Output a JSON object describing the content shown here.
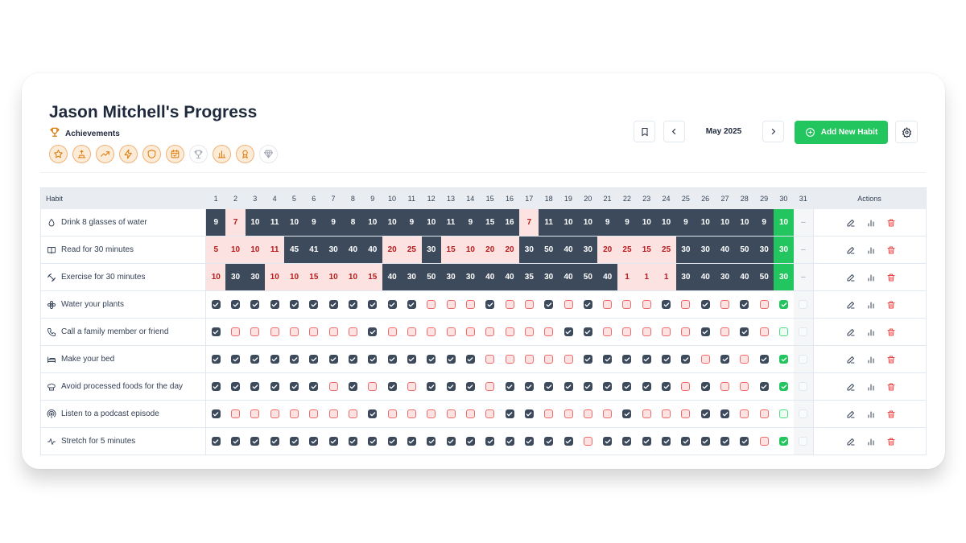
{
  "page": {
    "title": "Jason Mitchell's Progress",
    "achievements_label": "Achievements",
    "badges": [
      {
        "icon": "star-icon",
        "earned": true
      },
      {
        "icon": "podium-icon",
        "earned": true
      },
      {
        "icon": "trending-up-icon",
        "earned": true
      },
      {
        "icon": "lightning-icon",
        "earned": true
      },
      {
        "icon": "shield-icon",
        "earned": true
      },
      {
        "icon": "calendar-check-icon",
        "earned": true
      },
      {
        "icon": "trophy-icon",
        "earned": false
      },
      {
        "icon": "bar-chart-icon",
        "earned": true
      },
      {
        "icon": "medal-icon",
        "earned": true
      },
      {
        "icon": "diamond-icon",
        "earned": false
      }
    ]
  },
  "toolbar": {
    "month": "May 2025",
    "add_label": "Add New Habit",
    "icons": [
      "bookmark-icon",
      "chevron-left-icon",
      "chevron-right-icon",
      "plus-circle-icon",
      "settings-icon"
    ]
  },
  "table": {
    "habit_header": "Habit",
    "actions_header": "Actions",
    "days": [
      "1",
      "2",
      "3",
      "4",
      "5",
      "6",
      "7",
      "8",
      "9",
      "10",
      "11",
      "12",
      "13",
      "14",
      "15",
      "16",
      "17",
      "18",
      "19",
      "20",
      "21",
      "22",
      "23",
      "24",
      "25",
      "26",
      "27",
      "28",
      "29",
      "30",
      "31"
    ],
    "action_icons": [
      "edit-icon",
      "stats-icon",
      "delete-icon"
    ],
    "rows": [
      {
        "name": "Drink 8 glasses of water",
        "icon": "droplet-icon",
        "type": "num",
        "values": [
          "9",
          "7",
          "10",
          "11",
          "10",
          "9",
          "9",
          "8",
          "10",
          "10",
          "9",
          "10",
          "11",
          "9",
          "15",
          "16",
          "7",
          "11",
          "10",
          "10",
          "9",
          "9",
          "10",
          "10",
          "9",
          "10",
          "10",
          "10",
          "9",
          "10",
          "–"
        ],
        "status": [
          "d",
          "m",
          "d",
          "d",
          "d",
          "d",
          "d",
          "d",
          "d",
          "d",
          "d",
          "d",
          "d",
          "d",
          "d",
          "d",
          "m",
          "d",
          "d",
          "d",
          "d",
          "d",
          "d",
          "d",
          "d",
          "d",
          "d",
          "d",
          "d",
          "g",
          "-"
        ]
      },
      {
        "name": "Read for 30 minutes",
        "icon": "book-icon",
        "type": "num",
        "values": [
          "5",
          "10",
          "10",
          "11",
          "45",
          "41",
          "30",
          "40",
          "40",
          "20",
          "25",
          "30",
          "15",
          "10",
          "20",
          "20",
          "30",
          "50",
          "40",
          "30",
          "20",
          "25",
          "15",
          "25",
          "30",
          "30",
          "40",
          "50",
          "30",
          "30",
          "–"
        ],
        "status": [
          "m",
          "m",
          "m",
          "m",
          "d",
          "d",
          "d",
          "d",
          "d",
          "m",
          "m",
          "d",
          "m",
          "m",
          "m",
          "m",
          "d",
          "d",
          "d",
          "d",
          "m",
          "m",
          "m",
          "m",
          "d",
          "d",
          "d",
          "d",
          "d",
          "g",
          "-"
        ]
      },
      {
        "name": "Exercise for 30 minutes",
        "icon": "dumbbell-icon",
        "type": "num",
        "values": [
          "10",
          "30",
          "30",
          "10",
          "10",
          "15",
          "10",
          "10",
          "15",
          "40",
          "30",
          "50",
          "30",
          "30",
          "40",
          "40",
          "35",
          "30",
          "40",
          "50",
          "40",
          "1",
          "1",
          "1",
          "30",
          "40",
          "30",
          "40",
          "50",
          "30",
          "–"
        ],
        "status": [
          "m",
          "d",
          "d",
          "m",
          "m",
          "m",
          "m",
          "m",
          "m",
          "d",
          "d",
          "d",
          "d",
          "d",
          "d",
          "d",
          "d",
          "d",
          "d",
          "d",
          "d",
          "m",
          "m",
          "m",
          "d",
          "d",
          "d",
          "d",
          "d",
          "g",
          "-"
        ]
      },
      {
        "name": "Water your plants",
        "icon": "flower-icon",
        "type": "check",
        "status": [
          "x",
          "x",
          "x",
          "x",
          "x",
          "x",
          "x",
          "x",
          "x",
          "x",
          "x",
          "m",
          "m",
          "m",
          "x",
          "m",
          "m",
          "x",
          "m",
          "x",
          "m",
          "m",
          "m",
          "x",
          "m",
          "x",
          "m",
          "x",
          "m",
          "g",
          "e"
        ]
      },
      {
        "name": "Call a family member or friend",
        "icon": "phone-icon",
        "type": "check",
        "status": [
          "x",
          "m",
          "m",
          "m",
          "m",
          "m",
          "m",
          "m",
          "x",
          "m",
          "m",
          "m",
          "m",
          "m",
          "m",
          "m",
          "m",
          "m",
          "x",
          "x",
          "m",
          "m",
          "m",
          "m",
          "m",
          "x",
          "m",
          "x",
          "m",
          "gl",
          "e"
        ]
      },
      {
        "name": "Make your bed",
        "icon": "bed-icon",
        "type": "check",
        "status": [
          "x",
          "x",
          "x",
          "x",
          "x",
          "x",
          "x",
          "x",
          "x",
          "x",
          "x",
          "x",
          "x",
          "x",
          "m",
          "m",
          "m",
          "m",
          "m",
          "x",
          "x",
          "x",
          "x",
          "x",
          "x",
          "m",
          "x",
          "m",
          "x",
          "g",
          "e"
        ]
      },
      {
        "name": "Avoid processed foods for the day",
        "icon": "chef-hat-icon",
        "type": "check",
        "status": [
          "x",
          "x",
          "x",
          "x",
          "x",
          "x",
          "m",
          "x",
          "m",
          "x",
          "m",
          "x",
          "x",
          "x",
          "m",
          "x",
          "x",
          "x",
          "x",
          "x",
          "x",
          "x",
          "x",
          "x",
          "m",
          "x",
          "m",
          "m",
          "x",
          "g",
          "e"
        ]
      },
      {
        "name": "Listen to a podcast episode",
        "icon": "podcast-icon",
        "type": "check",
        "status": [
          "x",
          "m",
          "m",
          "m",
          "m",
          "m",
          "m",
          "m",
          "x",
          "m",
          "m",
          "m",
          "m",
          "m",
          "m",
          "x",
          "x",
          "m",
          "m",
          "m",
          "m",
          "x",
          "m",
          "m",
          "m",
          "x",
          "x",
          "m",
          "m",
          "gl",
          "e"
        ]
      },
      {
        "name": "Stretch for 5 minutes",
        "icon": "activity-icon",
        "type": "check",
        "status": [
          "x",
          "x",
          "x",
          "x",
          "x",
          "x",
          "x",
          "x",
          "x",
          "x",
          "x",
          "x",
          "x",
          "x",
          "x",
          "x",
          "x",
          "x",
          "x",
          "m",
          "x",
          "x",
          "x",
          "x",
          "x",
          "x",
          "x",
          "x",
          "m",
          "g",
          "e"
        ]
      }
    ]
  },
  "colors": {
    "dark_cell": "#3c4a5c",
    "missed_cell": "#fde2e2",
    "missed_text": "#b91c1c",
    "goal_green": "#22c55e",
    "badge_orange": "#d97706",
    "delete_red": "#ef4444"
  }
}
